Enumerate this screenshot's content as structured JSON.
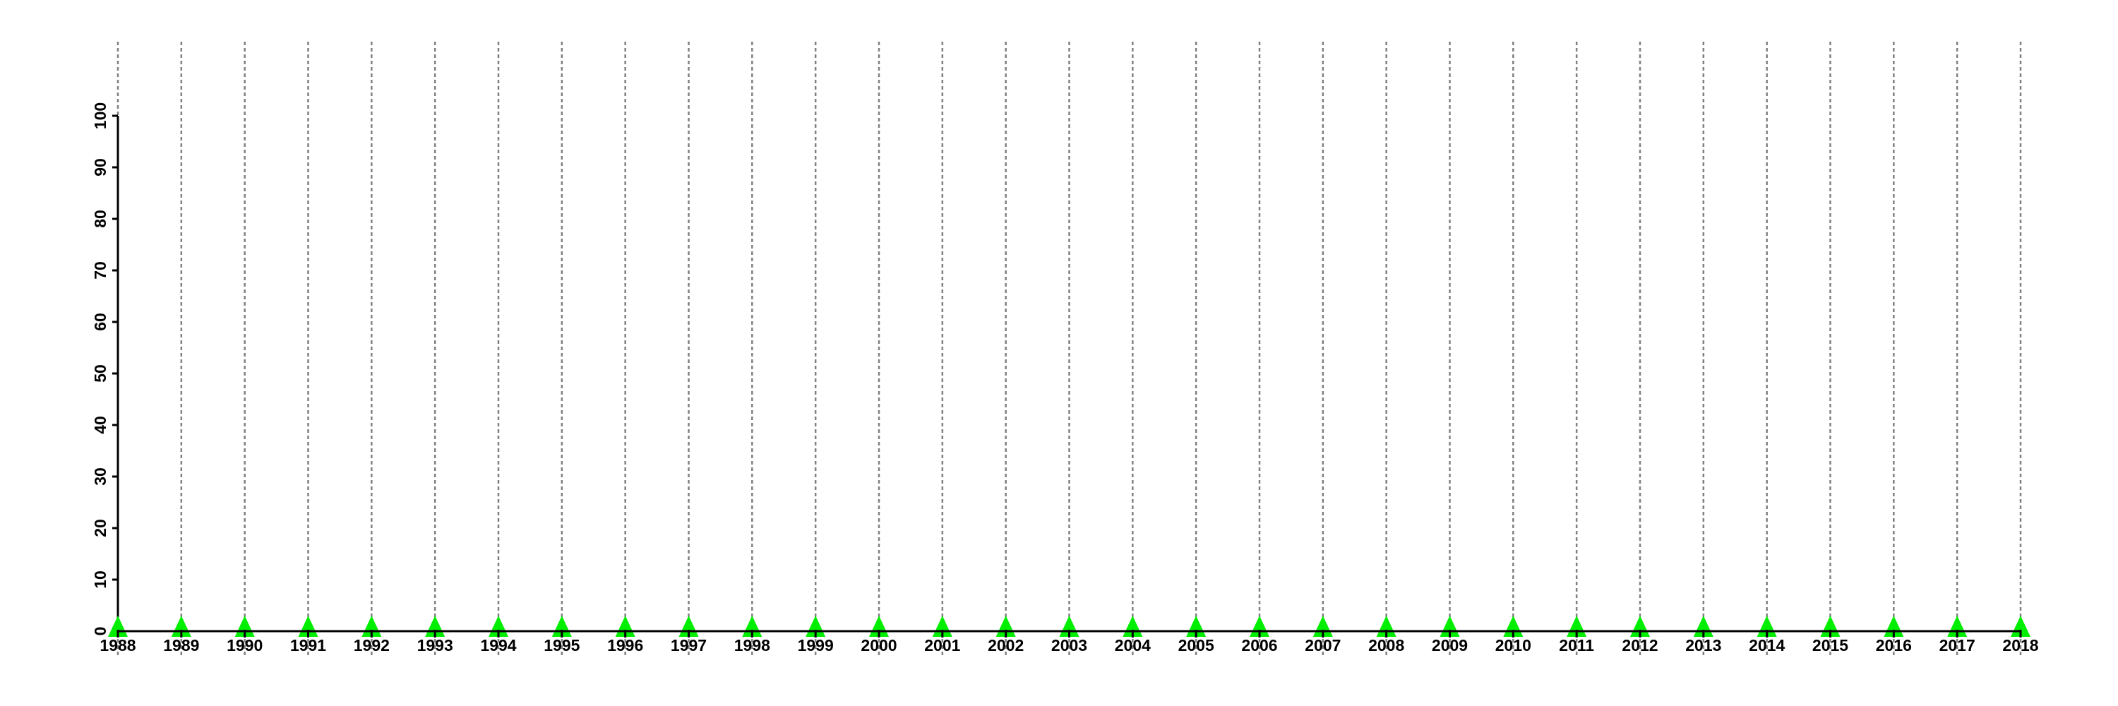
{
  "chart_data": {
    "type": "line",
    "title": "",
    "xlabel": "",
    "ylabel": "",
    "x": [
      1988,
      1989,
      1990,
      1991,
      1992,
      1993,
      1994,
      1995,
      1996,
      1997,
      1998,
      1999,
      2000,
      2001,
      2002,
      2003,
      2004,
      2005,
      2006,
      2007,
      2008,
      2009,
      2010,
      2011,
      2012,
      2013,
      2014,
      2015,
      2016,
      2017,
      2018
    ],
    "series": [
      {
        "values": [
          0,
          0,
          0,
          0,
          0,
          0,
          0,
          0,
          0,
          0,
          0,
          0,
          0,
          0,
          0,
          0,
          0,
          0,
          0,
          0,
          0,
          0,
          0,
          0,
          0,
          0,
          0,
          0,
          0,
          0,
          0
        ],
        "color": "#00ee00",
        "line_color": "#1a4d1a",
        "marker": "triangle"
      }
    ],
    "yticks": [
      0,
      10,
      20,
      30,
      40,
      50,
      60,
      70,
      80,
      90,
      100
    ],
    "ylim": [
      0,
      100
    ],
    "xlim": [
      1988,
      2018
    ],
    "grid": {
      "vertical": true,
      "horizontal": false,
      "style": "dotted",
      "color": "#808080"
    }
  }
}
